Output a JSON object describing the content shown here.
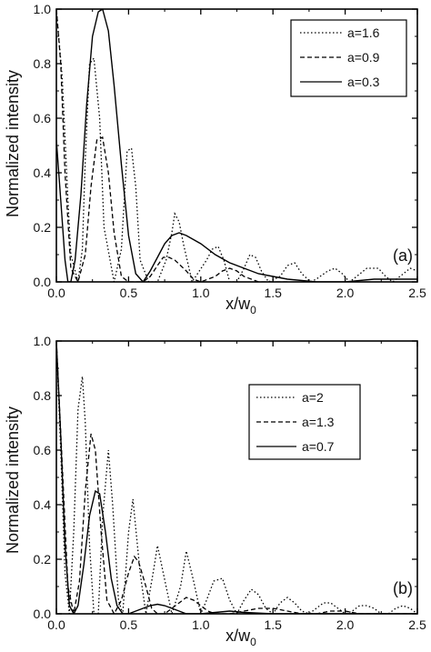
{
  "chart_data": [
    {
      "type": "line",
      "panel_label": "(a)",
      "xlabel": "x/w",
      "xlabel_sub": "0",
      "ylabel": "Normalized intensity",
      "xlim": [
        0,
        2.5
      ],
      "ylim": [
        0,
        1.0
      ],
      "xticks": [
        "0.0",
        "0.5",
        "1.0",
        "1.5",
        "2.0",
        "2.5"
      ],
      "yticks": [
        "0.0",
        "0.2",
        "0.4",
        "0.6",
        "0.8",
        "1.0"
      ],
      "legend_position": "top-right",
      "grid": false,
      "series": [
        {
          "name": "a=1.6",
          "style": "dotted",
          "x": [
            0.0,
            0.04,
            0.08,
            0.1,
            0.15,
            0.18,
            0.2,
            0.23,
            0.26,
            0.3,
            0.33,
            0.4,
            0.45,
            0.49,
            0.52,
            0.55,
            0.58,
            0.64,
            0.7,
            0.76,
            0.8,
            0.82,
            0.85,
            0.88,
            0.94,
            0.99,
            1.04,
            1.08,
            1.12,
            1.16,
            1.2,
            1.25,
            1.3,
            1.34,
            1.38,
            1.42,
            1.47,
            1.55,
            1.6,
            1.65,
            1.7,
            1.76,
            1.8,
            1.88,
            1.93,
            1.98,
            2.03,
            2.08,
            2.15,
            2.23,
            2.28,
            2.33,
            2.38,
            2.45,
            2.5
          ],
          "y": [
            1.0,
            0.75,
            0.3,
            0.1,
            0.0,
            0.12,
            0.45,
            0.8,
            0.82,
            0.6,
            0.2,
            0.0,
            0.12,
            0.48,
            0.49,
            0.35,
            0.08,
            0.0,
            0.0,
            0.08,
            0.18,
            0.25,
            0.22,
            0.14,
            0.0,
            0.04,
            0.08,
            0.12,
            0.13,
            0.08,
            0.0,
            0.0,
            0.05,
            0.1,
            0.09,
            0.04,
            0.0,
            0.02,
            0.06,
            0.07,
            0.03,
            0.0,
            0.01,
            0.04,
            0.05,
            0.03,
            0.0,
            0.02,
            0.05,
            0.05,
            0.02,
            0.0,
            0.02,
            0.05,
            0.04
          ]
        },
        {
          "name": "a=0.9",
          "style": "dashed",
          "x": [
            0.0,
            0.03,
            0.06,
            0.1,
            0.15,
            0.2,
            0.24,
            0.28,
            0.32,
            0.36,
            0.4,
            0.45,
            0.5,
            0.55,
            0.6,
            0.65,
            0.7,
            0.74,
            0.78,
            0.82,
            0.86,
            0.9,
            0.95,
            1.0,
            1.05,
            1.1,
            1.15,
            1.2,
            1.25,
            1.3,
            1.35,
            1.4,
            1.5,
            1.6
          ],
          "y": [
            1.0,
            0.8,
            0.4,
            0.05,
            0.0,
            0.1,
            0.35,
            0.52,
            0.53,
            0.4,
            0.18,
            0.02,
            0.0,
            0.0,
            0.0,
            0.02,
            0.06,
            0.09,
            0.09,
            0.08,
            0.06,
            0.04,
            0.01,
            0.0,
            0.01,
            0.02,
            0.04,
            0.05,
            0.04,
            0.02,
            0.01,
            0.0,
            0.0,
            0.0
          ]
        },
        {
          "name": "a=0.3",
          "style": "solid",
          "x": [
            0.0,
            0.03,
            0.06,
            0.08,
            0.1,
            0.13,
            0.17,
            0.21,
            0.25,
            0.29,
            0.32,
            0.36,
            0.4,
            0.45,
            0.5,
            0.55,
            0.6,
            0.65,
            0.7,
            0.75,
            0.8,
            0.85,
            0.9,
            1.0,
            1.1,
            1.2,
            1.3,
            1.4,
            1.5,
            1.6,
            1.8,
            2.0,
            2.2,
            2.4,
            2.5
          ],
          "y": [
            0.52,
            0.3,
            0.08,
            0.0,
            0.0,
            0.08,
            0.32,
            0.65,
            0.9,
            0.99,
            1.0,
            0.92,
            0.72,
            0.43,
            0.17,
            0.03,
            0.0,
            0.04,
            0.09,
            0.14,
            0.17,
            0.18,
            0.17,
            0.14,
            0.1,
            0.07,
            0.05,
            0.03,
            0.02,
            0.01,
            0.0,
            0.0,
            0.01,
            0.01,
            0.01
          ]
        }
      ]
    },
    {
      "type": "line",
      "panel_label": "(b)",
      "xlabel": "x/w",
      "xlabel_sub": "0",
      "ylabel": "Normalized intensity",
      "xlim": [
        0,
        2.5
      ],
      "ylim": [
        0,
        1.0
      ],
      "xticks": [
        "0.0",
        "0.5",
        "1.0",
        "1.5",
        "2.0",
        "2.5"
      ],
      "yticks": [
        "0.0",
        "0.2",
        "0.4",
        "0.6",
        "0.8",
        "1.0"
      ],
      "legend_position": "top-right",
      "grid": false,
      "series": [
        {
          "name": "a=2",
          "style": "dotted",
          "x": [
            0.0,
            0.03,
            0.06,
            0.09,
            0.12,
            0.15,
            0.18,
            0.2,
            0.23,
            0.26,
            0.29,
            0.32,
            0.36,
            0.39,
            0.43,
            0.46,
            0.5,
            0.53,
            0.58,
            0.62,
            0.67,
            0.7,
            0.76,
            0.8,
            0.86,
            0.9,
            0.95,
            1.0,
            1.04,
            1.09,
            1.15,
            1.2,
            1.25,
            1.3,
            1.35,
            1.4,
            1.45,
            1.5,
            1.55,
            1.6,
            1.65,
            1.7,
            1.75,
            1.8,
            1.85,
            1.9,
            1.95,
            2.0,
            2.05,
            2.1,
            2.15,
            2.2,
            2.25,
            2.3,
            2.35,
            2.4,
            2.45,
            2.5
          ],
          "y": [
            1.0,
            0.6,
            0.15,
            0.0,
            0.3,
            0.75,
            0.87,
            0.7,
            0.25,
            0.0,
            0.0,
            0.35,
            0.6,
            0.4,
            0.05,
            0.0,
            0.3,
            0.42,
            0.15,
            0.0,
            0.15,
            0.25,
            0.1,
            0.0,
            0.1,
            0.23,
            0.12,
            0.0,
            0.05,
            0.12,
            0.13,
            0.05,
            0.0,
            0.05,
            0.09,
            0.07,
            0.02,
            0.0,
            0.04,
            0.06,
            0.04,
            0.01,
            0.0,
            0.02,
            0.04,
            0.04,
            0.02,
            0.0,
            0.01,
            0.03,
            0.03,
            0.02,
            0.0,
            0.0,
            0.02,
            0.03,
            0.02,
            0.0
          ]
        },
        {
          "name": "a=1.3",
          "style": "dashed",
          "x": [
            0.0,
            0.04,
            0.08,
            0.12,
            0.16,
            0.2,
            0.24,
            0.27,
            0.31,
            0.35,
            0.4,
            0.45,
            0.5,
            0.54,
            0.57,
            0.62,
            0.66,
            0.7,
            0.75,
            0.8,
            0.85,
            0.9,
            0.95,
            1.0,
            1.05,
            1.1,
            1.2,
            1.3,
            1.4,
            1.5,
            1.6,
            1.7,
            1.8,
            1.9,
            2.0,
            2.1,
            2.2,
            2.3,
            2.4,
            2.5
          ],
          "y": [
            1.0,
            0.55,
            0.1,
            0.0,
            0.12,
            0.45,
            0.66,
            0.6,
            0.3,
            0.05,
            0.0,
            0.05,
            0.15,
            0.21,
            0.19,
            0.1,
            0.02,
            0.0,
            0.0,
            0.02,
            0.04,
            0.06,
            0.05,
            0.03,
            0.01,
            0.0,
            0.0,
            0.01,
            0.02,
            0.02,
            0.01,
            0.0,
            0.0,
            0.01,
            0.01,
            0.0,
            0.0,
            0.0,
            0.0,
            0.0
          ]
        },
        {
          "name": "a=0.7",
          "style": "solid",
          "x": [
            0.0,
            0.03,
            0.06,
            0.09,
            0.12,
            0.15,
            0.19,
            0.23,
            0.27,
            0.3,
            0.34,
            0.38,
            0.42,
            0.46,
            0.5,
            0.55,
            0.6,
            0.65,
            0.7,
            0.75,
            0.8,
            0.85,
            0.9,
            1.0,
            1.1,
            1.2,
            1.3,
            1.5,
            1.7,
            2.0,
            2.5
          ],
          "y": [
            1.0,
            0.65,
            0.25,
            0.03,
            0.0,
            0.03,
            0.18,
            0.36,
            0.45,
            0.44,
            0.3,
            0.13,
            0.03,
            0.0,
            0.0,
            0.01,
            0.02,
            0.03,
            0.035,
            0.03,
            0.02,
            0.01,
            0.0,
            0.0,
            0.005,
            0.01,
            0.005,
            0.0,
            0.0,
            0.0,
            0.0
          ]
        }
      ]
    }
  ]
}
